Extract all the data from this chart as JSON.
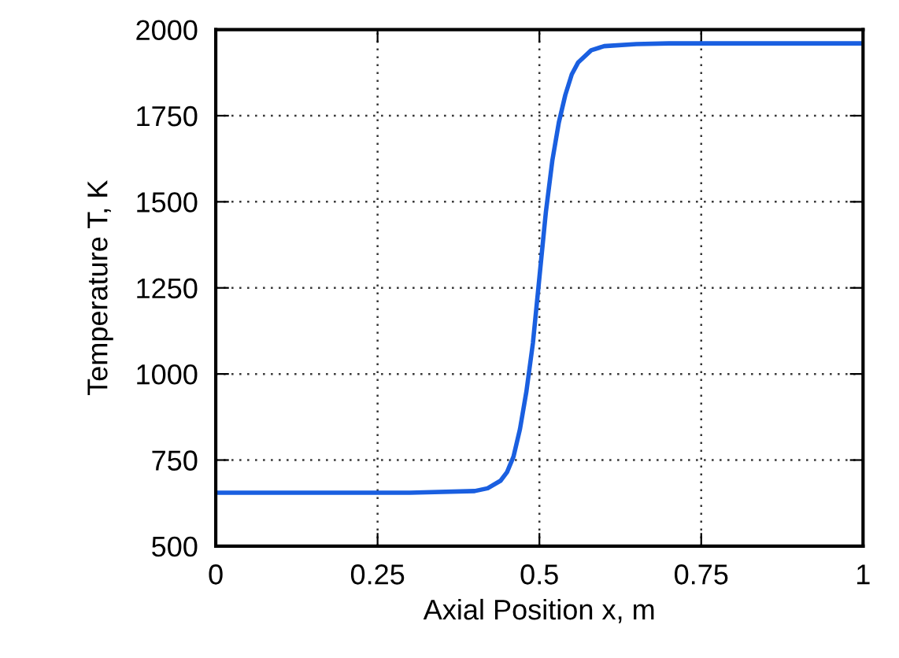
{
  "chart_data": {
    "type": "line",
    "xlabel": "Axial Position x, m",
    "ylabel": "Temperature T, K",
    "series": [
      {
        "color": "#1a5fe0",
        "x": [
          0,
          0.3,
          0.4,
          0.42,
          0.44,
          0.45,
          0.46,
          0.47,
          0.48,
          0.49,
          0.5,
          0.51,
          0.52,
          0.53,
          0.54,
          0.55,
          0.56,
          0.58,
          0.6,
          0.65,
          0.7,
          1.0
        ],
        "values": [
          655,
          655,
          660,
          668,
          690,
          715,
          760,
          840,
          950,
          1090,
          1280,
          1470,
          1620,
          1730,
          1810,
          1870,
          1905,
          1940,
          1952,
          1958,
          1960,
          1960
        ]
      }
    ],
    "xlim": [
      0,
      1
    ],
    "xticks": [
      0,
      0.25,
      0.5,
      0.75,
      1
    ],
    "ylim": [
      500,
      2000
    ],
    "yticks": [
      500,
      750,
      1000,
      1250,
      1500,
      1750,
      2000
    ],
    "grid": true,
    "line_style": "solid",
    "marker": "none"
  }
}
